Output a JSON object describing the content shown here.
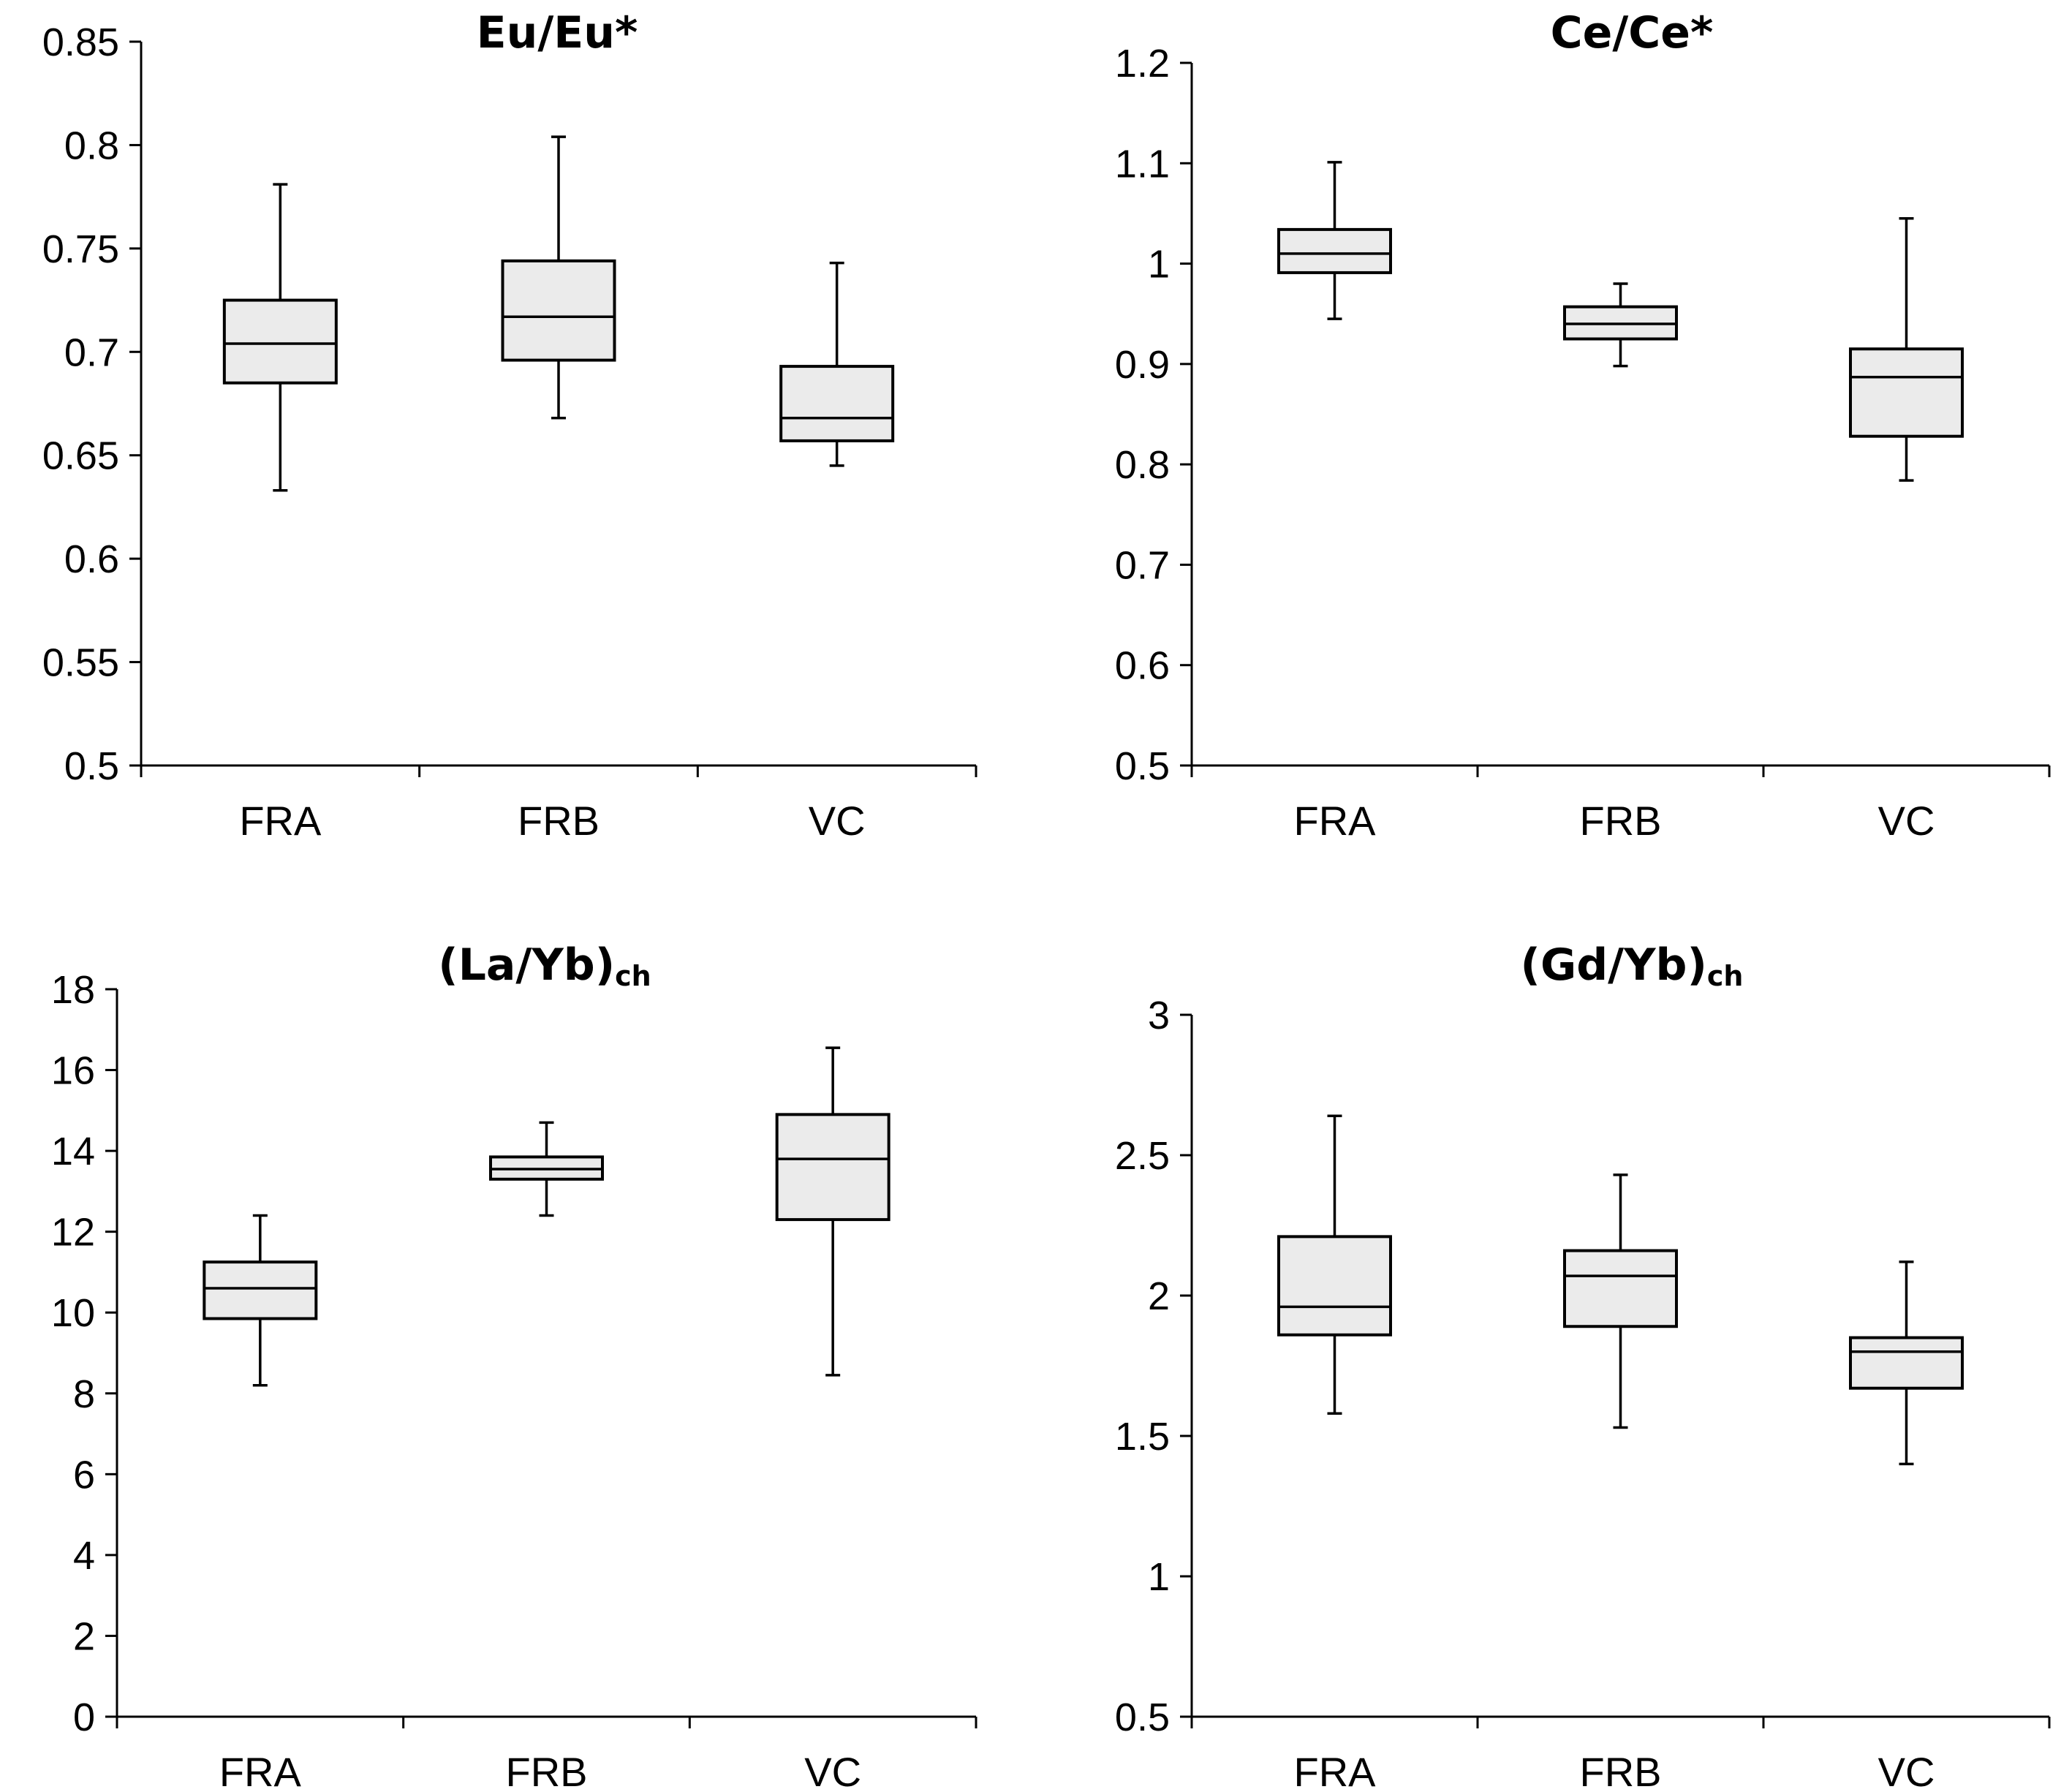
{
  "colors": {
    "box_fill": "#ebebeb",
    "stroke": "#000000",
    "background": "#ffffff"
  },
  "chart_data": [
    {
      "type": "boxplot",
      "title": "Eu/Eu*",
      "title_sub": "",
      "categories": [
        "FRA",
        "FRB",
        "VC"
      ],
      "ylim": [
        0.5,
        0.85
      ],
      "yticks": [
        0.5,
        0.55,
        0.6,
        0.65,
        0.7,
        0.75,
        0.8,
        0.85
      ],
      "ytick_labels": [
        "0.5",
        "0.55",
        "0.6",
        "0.65",
        "0.7",
        "0.75",
        "0.8",
        "0.85"
      ],
      "boxes": [
        {
          "min": 0.633,
          "q1": 0.685,
          "median": 0.704,
          "q3": 0.725,
          "max": 0.781
        },
        {
          "min": 0.668,
          "q1": 0.696,
          "median": 0.717,
          "q3": 0.744,
          "max": 0.804
        },
        {
          "min": 0.645,
          "q1": 0.657,
          "median": 0.668,
          "q3": 0.693,
          "max": 0.743
        }
      ]
    },
    {
      "type": "boxplot",
      "title": "Ce/Ce*",
      "title_sub": "",
      "categories": [
        "FRA",
        "FRB",
        "VC"
      ],
      "ylim": [
        0.5,
        1.2
      ],
      "yticks": [
        0.5,
        0.6,
        0.7,
        0.8,
        0.9,
        1.0,
        1.1,
        1.2
      ],
      "ytick_labels": [
        "0.5",
        "0.6",
        "0.7",
        "0.8",
        "0.9",
        "1",
        "1.1",
        "1.2"
      ],
      "boxes": [
        {
          "min": 0.945,
          "q1": 0.991,
          "median": 1.01,
          "q3": 1.034,
          "max": 1.101
        },
        {
          "min": 0.898,
          "q1": 0.925,
          "median": 0.94,
          "q3": 0.957,
          "max": 0.98
        },
        {
          "min": 0.784,
          "q1": 0.828,
          "median": 0.887,
          "q3": 0.915,
          "max": 1.045
        }
      ]
    },
    {
      "type": "boxplot",
      "title": "(La/Yb)",
      "title_sub": "ch",
      "categories": [
        "FRA",
        "FRB",
        "VC"
      ],
      "ylim": [
        0,
        18
      ],
      "yticks": [
        0,
        2,
        4,
        6,
        8,
        10,
        12,
        14,
        16,
        18
      ],
      "ytick_labels": [
        "0",
        "2",
        "4",
        "6",
        "8",
        "10",
        "12",
        "14",
        "16",
        "18"
      ],
      "boxes": [
        {
          "min": 8.2,
          "q1": 9.85,
          "median": 10.6,
          "q3": 11.25,
          "max": 12.4
        },
        {
          "min": 12.4,
          "q1": 13.3,
          "median": 13.55,
          "q3": 13.85,
          "max": 14.7
        },
        {
          "min": 8.45,
          "q1": 12.3,
          "median": 13.8,
          "q3": 14.9,
          "max": 16.55
        }
      ]
    },
    {
      "type": "boxplot",
      "title": "(Gd/Yb)",
      "title_sub": "ch",
      "categories": [
        "FRA",
        "FRB",
        "VC"
      ],
      "ylim": [
        0.5,
        3
      ],
      "yticks": [
        0.5,
        1,
        1.5,
        2,
        2.5,
        3
      ],
      "ytick_labels": [
        "0.5",
        "1",
        "1.5",
        "2",
        "2.5",
        "3"
      ],
      "boxes": [
        {
          "min": 1.58,
          "q1": 1.86,
          "median": 1.96,
          "q3": 2.21,
          "max": 2.64
        },
        {
          "min": 1.53,
          "q1": 1.89,
          "median": 2.07,
          "q3": 2.16,
          "max": 2.43
        },
        {
          "min": 1.4,
          "q1": 1.67,
          "median": 1.8,
          "q3": 1.85,
          "max": 2.12
        }
      ]
    }
  ]
}
